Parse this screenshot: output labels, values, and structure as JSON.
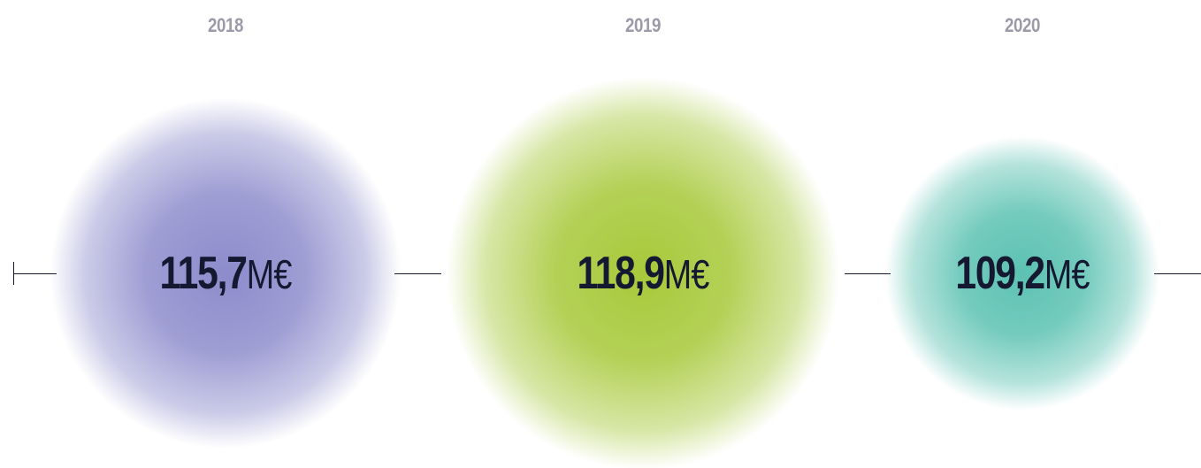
{
  "chart_data": {
    "type": "bubble",
    "categories": [
      "2018",
      "2019",
      "2020"
    ],
    "values": [
      115.7,
      118.9,
      109.2
    ],
    "value_labels": [
      "115,7",
      "118,9",
      "109,2"
    ],
    "unit": "M€",
    "colors": [
      "#8d8ccc",
      "#a7c93a",
      "#5cc2b2"
    ]
  }
}
